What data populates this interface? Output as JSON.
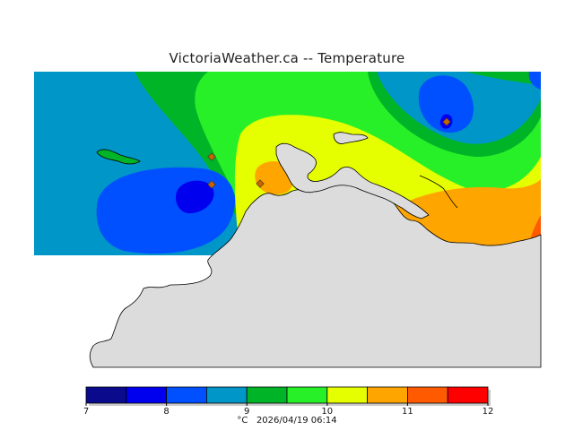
{
  "page": {
    "title": "VictoriaWeather.ca -- Temperature"
  },
  "legend": {
    "colors": [
      "#0a0a8c",
      "#0000ee",
      "#0050ff",
      "#0096c8",
      "#00b428",
      "#28f028",
      "#e6ff00",
      "#ffa500",
      "#ff5a00",
      "#ff0000"
    ],
    "ticks": [
      {
        "label": "7",
        "value": 7
      },
      {
        "label": "8",
        "value": 8
      },
      {
        "label": "9",
        "value": 9
      },
      {
        "label": "10",
        "value": 10
      },
      {
        "label": "11",
        "value": 11
      },
      {
        "label": "12",
        "value": 12
      }
    ],
    "unit": "°C",
    "timestamp": "2026/04/19 06:14"
  },
  "map": {
    "land_color": "#dcdcdc",
    "stations": 4
  }
}
